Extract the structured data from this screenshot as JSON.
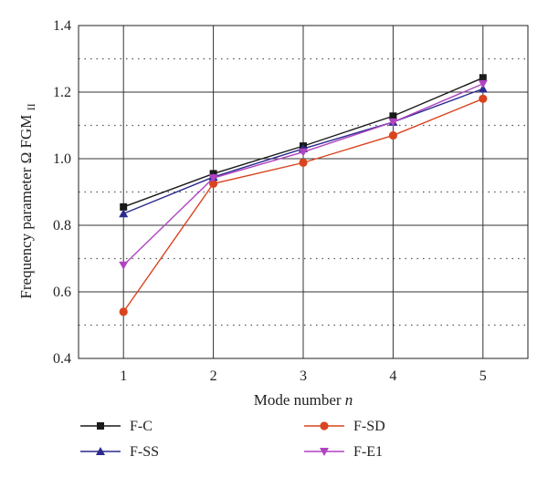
{
  "chart_data": {
    "type": "line",
    "title": "",
    "xlabel": "Mode number",
    "xlabel_var": "n",
    "ylabel": "Frequency parameter Ω FGM",
    "ylabel_sub": "II",
    "x": [
      1,
      2,
      3,
      4,
      5
    ],
    "xlim": [
      0.5,
      5.5
    ],
    "ylim": [
      0.4,
      1.4
    ],
    "xticks": [
      "1",
      "2",
      "3",
      "4",
      "5"
    ],
    "yticks": [
      "0.4",
      "0.6",
      "0.8",
      "1.0",
      "1.2",
      "1.4"
    ],
    "major_grid": "solid",
    "minor_grid": "dotted",
    "legend_position": "bottom",
    "series": [
      {
        "name": "F-C",
        "color": "#1a1a1a",
        "marker": "square",
        "values": [
          0.855,
          0.955,
          1.038,
          1.128,
          1.243
        ]
      },
      {
        "name": "F-SD",
        "color": "#d9441f",
        "marker": "circle",
        "values": [
          0.54,
          0.925,
          0.988,
          1.07,
          1.18
        ]
      },
      {
        "name": "F-SS",
        "color": "#2b2a8f",
        "marker": "triangle-up",
        "values": [
          0.835,
          0.945,
          1.03,
          1.11,
          1.21
        ]
      },
      {
        "name": "F-E1",
        "color": "#b044c0",
        "marker": "triangle-down",
        "values": [
          0.68,
          0.942,
          1.02,
          1.11,
          1.225
        ]
      }
    ]
  }
}
